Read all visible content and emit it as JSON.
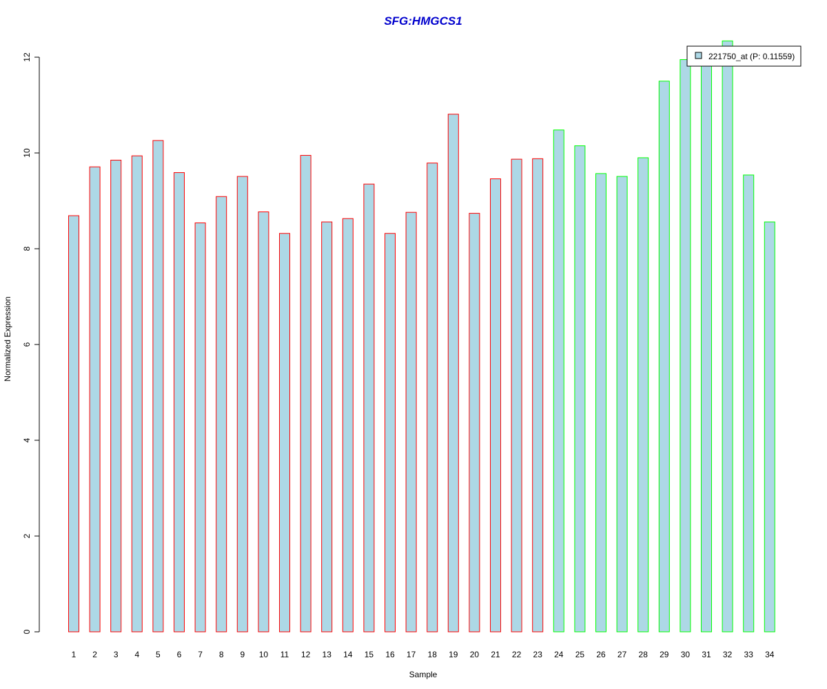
{
  "chart_data": {
    "type": "bar",
    "title": "SFG:HMGCS1",
    "title_color": "#0000CD",
    "xlabel": "Sample",
    "ylabel": "Normalized Expression",
    "ylim": [
      0,
      12
    ],
    "yticks": [
      0,
      2,
      4,
      6,
      8,
      10,
      12
    ],
    "grid": false,
    "categories": [
      "1",
      "2",
      "3",
      "4",
      "5",
      "6",
      "7",
      "8",
      "9",
      "10",
      "11",
      "12",
      "13",
      "14",
      "15",
      "16",
      "17",
      "18",
      "19",
      "20",
      "21",
      "22",
      "23",
      "24",
      "25",
      "26",
      "27",
      "28",
      "29",
      "30",
      "31",
      "32",
      "33",
      "34"
    ],
    "series": [
      {
        "name": "221750_at (P: 0.11559)",
        "fill_color": "#ADD8E6",
        "values": [
          8.69,
          9.71,
          9.85,
          9.94,
          10.26,
          9.59,
          8.54,
          9.09,
          9.51,
          8.77,
          8.32,
          9.95,
          8.56,
          8.63,
          9.35,
          8.32,
          8.76,
          9.79,
          10.81,
          8.74,
          9.46,
          9.87,
          9.88,
          10.48,
          10.15,
          9.57,
          9.51,
          9.9,
          11.5,
          11.95,
          12.0,
          12.34,
          9.54,
          8.56
        ]
      }
    ],
    "border_colors": [
      "#FF0000",
      "#FF0000",
      "#FF0000",
      "#FF0000",
      "#FF0000",
      "#FF0000",
      "#FF0000",
      "#FF0000",
      "#FF0000",
      "#FF0000",
      "#FF0000",
      "#FF0000",
      "#FF0000",
      "#FF0000",
      "#FF0000",
      "#FF0000",
      "#FF0000",
      "#FF0000",
      "#FF0000",
      "#FF0000",
      "#FF0000",
      "#FF0000",
      "#FF0000",
      "#00FF00",
      "#00FF00",
      "#00FF00",
      "#00FF00",
      "#00FF00",
      "#00FF00",
      "#00FF00",
      "#00FF00",
      "#00FF00",
      "#00FF00",
      "#00FF00"
    ],
    "legend": {
      "placement": "top-right",
      "label": "221750_at (P: 0.11559)"
    }
  }
}
